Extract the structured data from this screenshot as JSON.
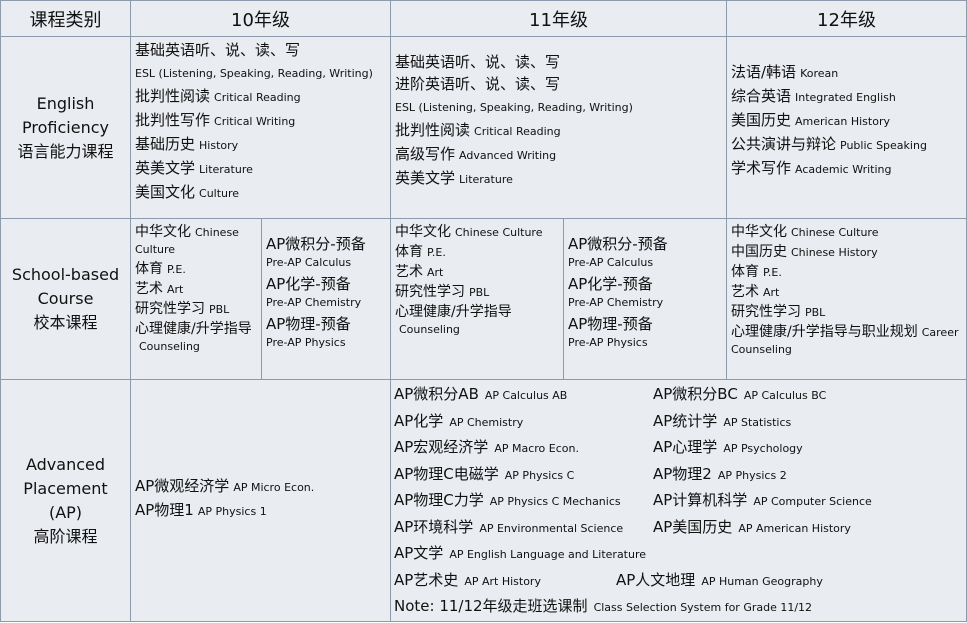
{
  "header": {
    "category": "课程类别",
    "g10": "10年级",
    "g11": "11年级",
    "g12": "12年级"
  },
  "rows": {
    "english": {
      "label_en": "English Proficiency",
      "label_cn": "语言能力课程",
      "g10": [
        {
          "cn": "基础英语听、说、读、写",
          "en": ""
        },
        {
          "cn": "",
          "en": "ESL (Listening, Speaking, Reading, Writing)"
        },
        {
          "cn": "批判性阅读",
          "en": "Critical Reading"
        },
        {
          "cn": "批判性写作",
          "en": "Critical Writing"
        },
        {
          "cn": "基础历史",
          "en": "History"
        },
        {
          "cn": "英美文学",
          "en": "Literature"
        },
        {
          "cn": "美国文化",
          "en": "Culture"
        }
      ],
      "g11": [
        {
          "cn": "基础英语听、说、读、写",
          "en": ""
        },
        {
          "cn": "进阶英语听、说、读、写",
          "en": ""
        },
        {
          "cn": "",
          "en": "ESL (Listening, Speaking, Reading, Writing)"
        },
        {
          "cn": "批判性阅读",
          "en": "Critical Reading"
        },
        {
          "cn": "高级写作",
          "en": "Advanced Writing"
        },
        {
          "cn": "英美文学",
          "en": "Literature"
        }
      ],
      "g12": [
        {
          "cn": "法语/韩语",
          "en": "Korean"
        },
        {
          "cn": "综合英语",
          "en": "Integrated English"
        },
        {
          "cn": "美国历史",
          "en": "American History"
        },
        {
          "cn": "公共演讲与辩论",
          "en": "Public Speaking"
        },
        {
          "cn": "学术写作",
          "en": "Academic Writing"
        }
      ]
    },
    "school": {
      "label_en": "School-based Course",
      "label_cn": "校本课程",
      "g10a": [
        {
          "cn": "中华文化",
          "en": "Chinese Culture"
        },
        {
          "cn": "体育",
          "en": "P.E."
        },
        {
          "cn": "艺术",
          "en": "Art"
        },
        {
          "cn": "研究性学习",
          "en": "PBL"
        },
        {
          "cn": "心理健康/升学指导",
          "en": "Counseling"
        }
      ],
      "g10b": [
        {
          "cn": "AP微积分-预备",
          "en": "Pre-AP Calculus"
        },
        {
          "cn": "AP化学-预备",
          "en": "Pre-AP Chemistry"
        },
        {
          "cn": "AP物理-预备",
          "en": "Pre-AP Physics"
        }
      ],
      "g11a": [
        {
          "cn": "中华文化",
          "en": "Chinese Culture"
        },
        {
          "cn": "体育",
          "en": "P.E."
        },
        {
          "cn": "艺术",
          "en": "Art"
        },
        {
          "cn": "研究性学习",
          "en": "PBL"
        },
        {
          "cn": "心理健康/升学指导",
          "en": "Counseling"
        }
      ],
      "g11b": [
        {
          "cn": "AP微积分-预备",
          "en": "Pre-AP Calculus"
        },
        {
          "cn": "AP化学-预备",
          "en": "Pre-AP Chemistry"
        },
        {
          "cn": "AP物理-预备",
          "en": "Pre-AP Physics"
        }
      ],
      "g12": [
        {
          "cn": "中华文化",
          "en": "Chinese Culture"
        },
        {
          "cn": "中国历史",
          "en": "Chinese History"
        },
        {
          "cn": "体育",
          "en": "P.E."
        },
        {
          "cn": "艺术",
          "en": "Art"
        },
        {
          "cn": "研究性学习",
          "en": "PBL"
        },
        {
          "cn": "心理健康/升学指导与职业规划",
          "en": "Career Counseling"
        }
      ]
    },
    "ap": {
      "label_en": "Advanced Placement (AP)",
      "label_cn": "高阶课程",
      "g10": [
        {
          "cn": "AP微观经济学",
          "en": "AP Micro Econ."
        },
        {
          "cn": "AP物理1",
          "en": "AP Physics 1"
        }
      ],
      "g1112": [
        [
          {
            "cn": "AP微积分AB",
            "en": "AP Calculus AB"
          },
          {
            "cn": "AP微积分BC",
            "en": "AP Calculus BC"
          }
        ],
        [
          {
            "cn": "AP化学",
            "en": "AP Chemistry"
          },
          {
            "cn": "AP统计学",
            "en": "AP Statistics"
          }
        ],
        [
          {
            "cn": "AP宏观经济学",
            "en": "AP Macro Econ."
          },
          {
            "cn": "AP心理学",
            "en": "AP Psychology"
          }
        ],
        [
          {
            "cn": "AP物理C电磁学",
            "en": "AP Physics C"
          },
          {
            "cn": "AP物理2",
            "en": "AP Physics 2"
          }
        ],
        [
          {
            "cn": "AP物理C力学",
            "en": "AP Physics C Mechanics"
          },
          {
            "cn": "AP计算机科学",
            "en": "AP Computer Science"
          }
        ],
        [
          {
            "cn": "AP环境科学",
            "en": "AP Environmental Science"
          },
          {
            "cn": "AP美国历史",
            "en": "AP American History"
          }
        ],
        [
          {
            "cn": "AP文学",
            "en": "AP English Language and Literature"
          }
        ],
        [
          {
            "cn": "AP艺术史",
            "en": "AP Art History"
          },
          {
            "cn": "AP人文地理",
            "en": "AP Human Geography"
          }
        ],
        [
          {
            "cn": "Note: 11/12年级走班选课制",
            "en": "Class Selection System for Grade 11/12"
          }
        ]
      ]
    }
  }
}
